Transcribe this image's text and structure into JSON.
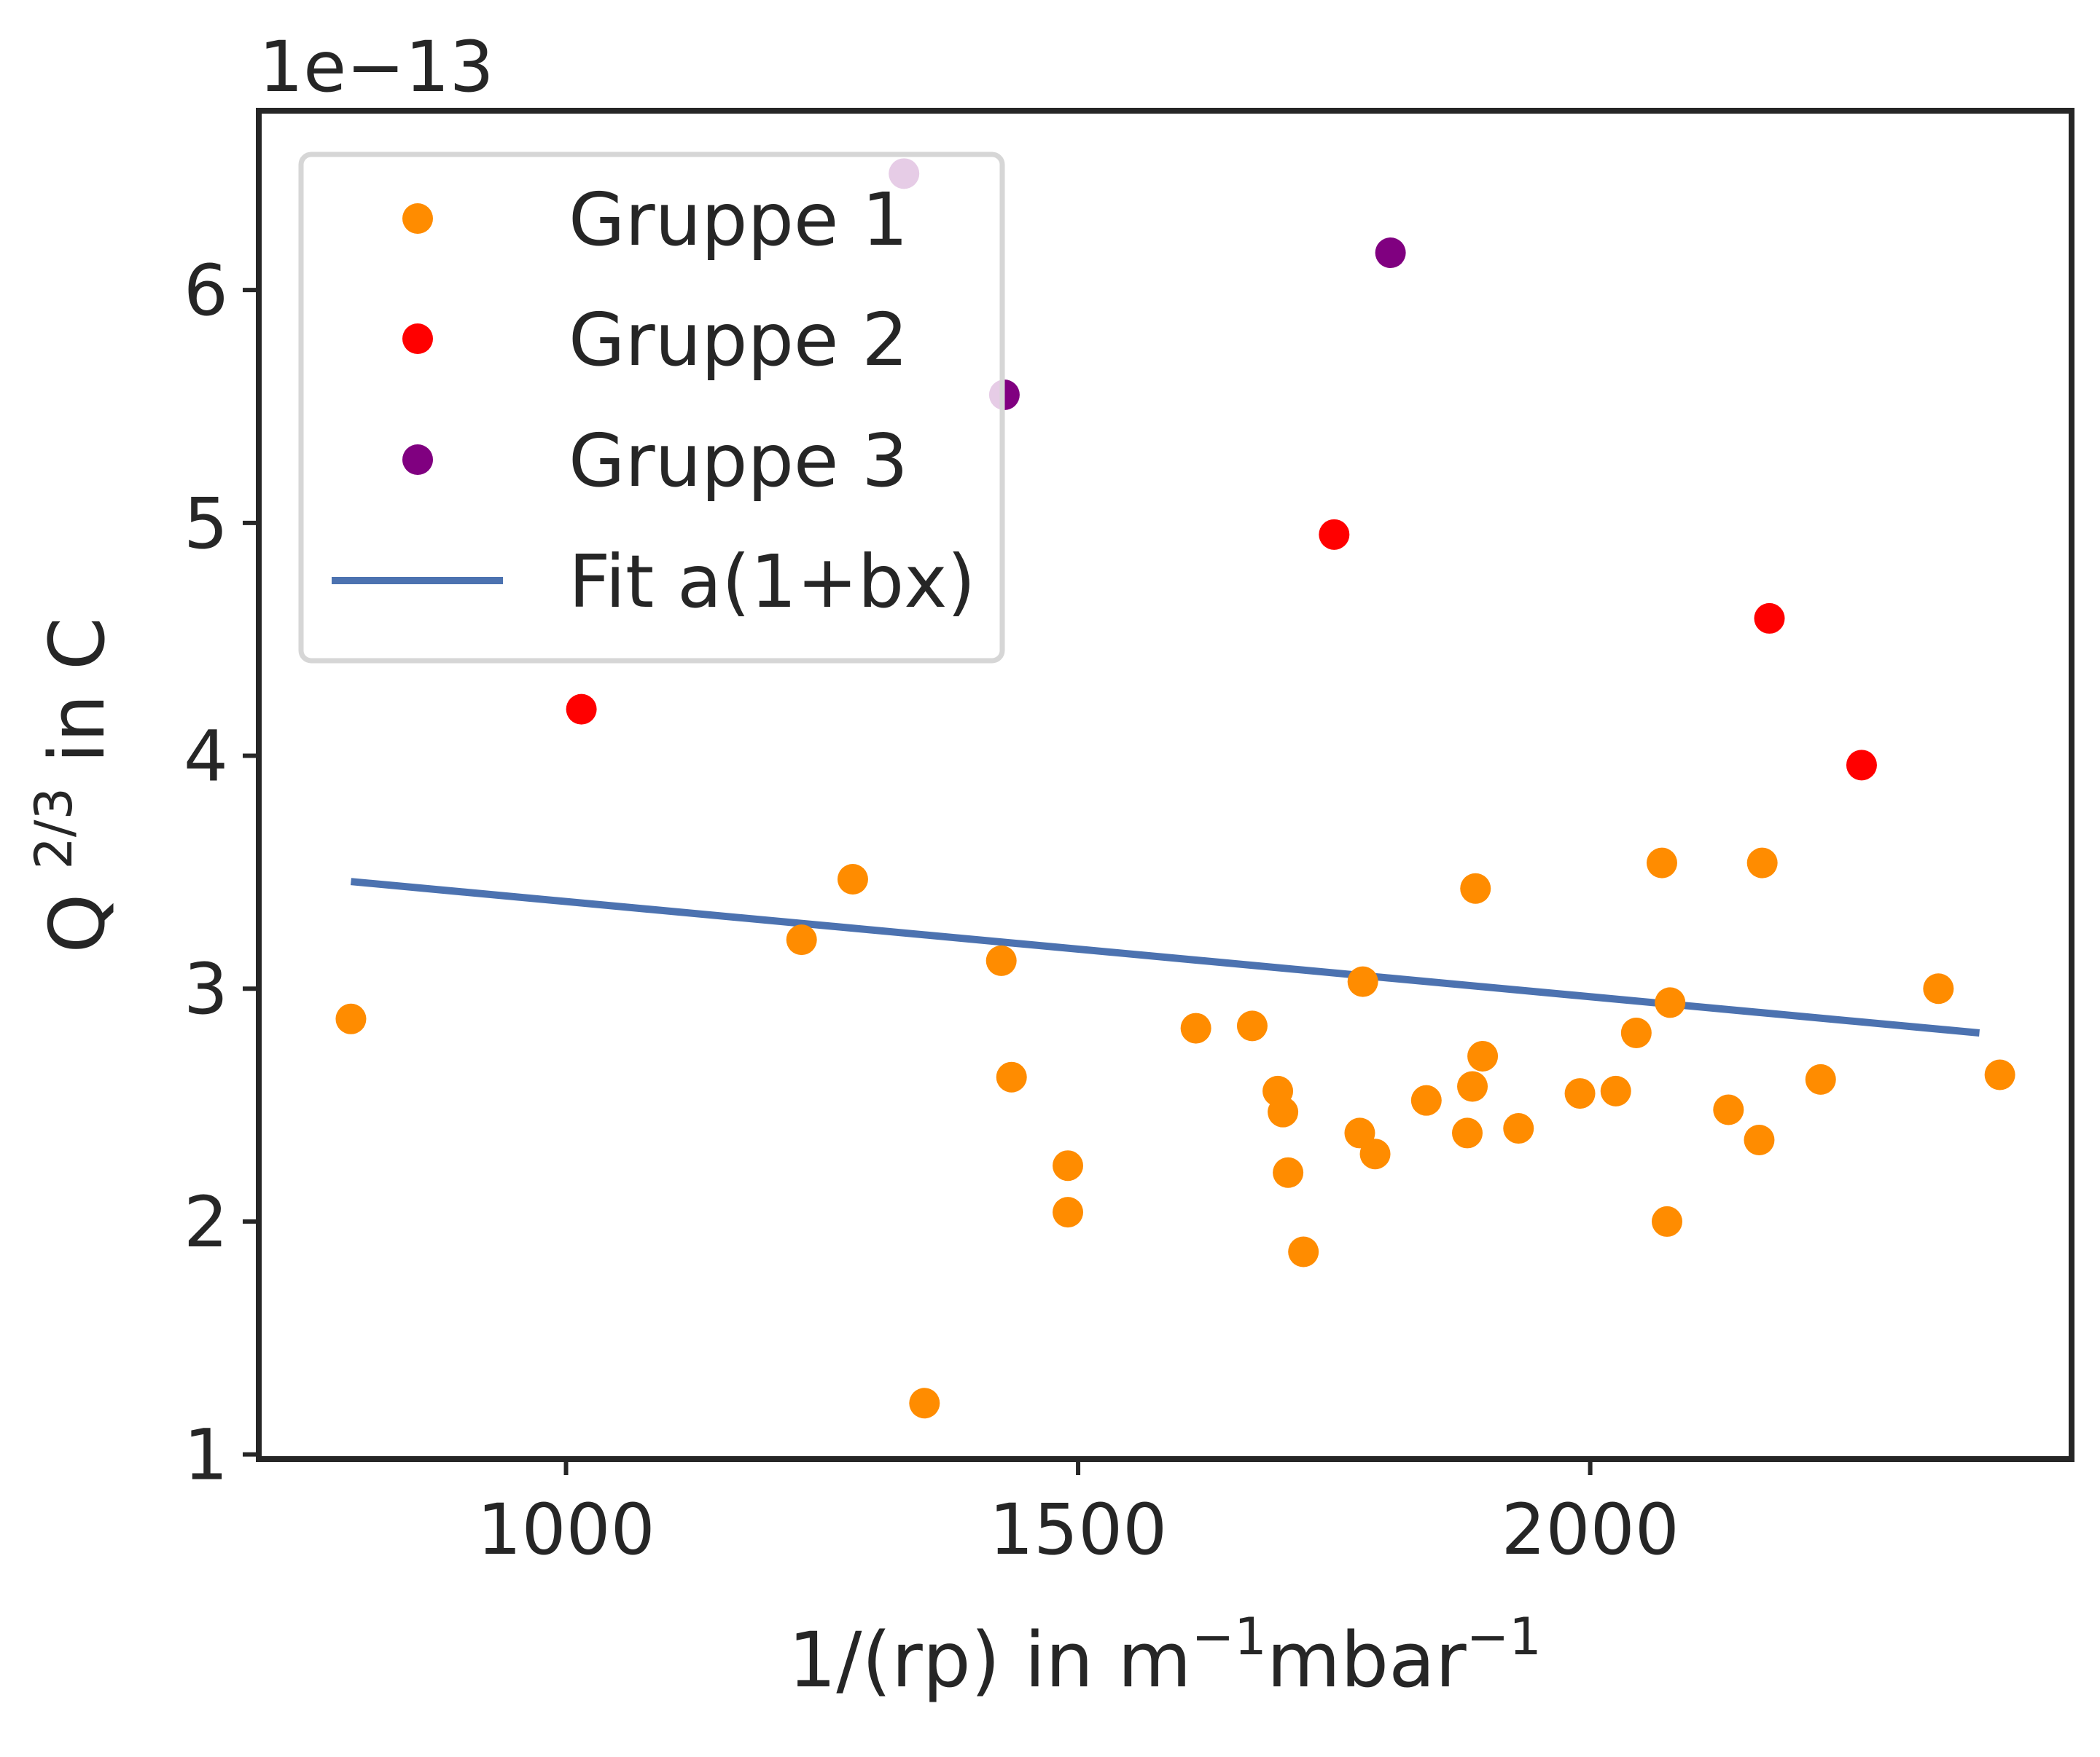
{
  "chart_data": {
    "type": "scatter",
    "title": "",
    "offset_text": "1e−13",
    "xlabel": "1/(rp) in m",
    "xlabel_sup1": "−1",
    "xlabel_mid": "mbar",
    "xlabel_sup2": "−1",
    "ylabel_pre": "Q ",
    "ylabel_sup": "2/3",
    "ylabel_post": " in C",
    "xlim": [
      700,
      2470
    ],
    "ylim": [
      0.98,
      6.77
    ],
    "xticks": [
      1000,
      1500,
      2000
    ],
    "xtick_labels": [
      "1000",
      "1500",
      "2000"
    ],
    "yticks": [
      1,
      2,
      3,
      4,
      5,
      6
    ],
    "ytick_labels": [
      "1",
      "2",
      "3",
      "4",
      "5",
      "6"
    ],
    "grid": false,
    "legend_position": "top-left",
    "series": [
      {
        "name": "Gruppe 1",
        "color": "#ff8c00",
        "points": [
          [
            790,
            2.87
          ],
          [
            1230,
            3.21
          ],
          [
            1280,
            3.47
          ],
          [
            1350,
            1.22
          ],
          [
            1425,
            3.12
          ],
          [
            1435,
            2.62
          ],
          [
            1490,
            2.24
          ],
          [
            1490,
            2.04
          ],
          [
            1615,
            2.83
          ],
          [
            1670,
            2.84
          ],
          [
            1695,
            2.56
          ],
          [
            1700,
            2.47
          ],
          [
            1705,
            2.21
          ],
          [
            1720,
            1.87
          ],
          [
            1775,
            2.38
          ],
          [
            1778,
            3.03
          ],
          [
            1790,
            2.29
          ],
          [
            1840,
            2.52
          ],
          [
            1880,
            2.38
          ],
          [
            1885,
            2.58
          ],
          [
            1888,
            3.43
          ],
          [
            1895,
            2.71
          ],
          [
            1930,
            2.4
          ],
          [
            1990,
            2.55
          ],
          [
            2025,
            2.56
          ],
          [
            2045,
            2.81
          ],
          [
            2070,
            3.54
          ],
          [
            2075,
            2.0
          ],
          [
            2078,
            2.94
          ],
          [
            2135,
            2.48
          ],
          [
            2165,
            2.35
          ],
          [
            2168,
            3.54
          ],
          [
            2225,
            2.61
          ],
          [
            2340,
            3.0
          ],
          [
            2400,
            2.63
          ]
        ]
      },
      {
        "name": "Gruppe 2",
        "color": "#ff0000",
        "points": [
          [
            1015,
            4.2
          ],
          [
            1750,
            4.95
          ],
          [
            2175,
            4.59
          ],
          [
            2265,
            3.96
          ]
        ]
      },
      {
        "name": "Gruppe 3",
        "color": "#800080",
        "points": [
          [
            1805,
            6.16
          ],
          [
            1428,
            5.55
          ],
          [
            1330,
            6.5
          ]
        ]
      }
    ],
    "fit": {
      "name": "Fit a(1+bx)",
      "color": "#4c72b0",
      "x": [
        790,
        2380
      ],
      "y": [
        3.46,
        2.81
      ]
    }
  }
}
